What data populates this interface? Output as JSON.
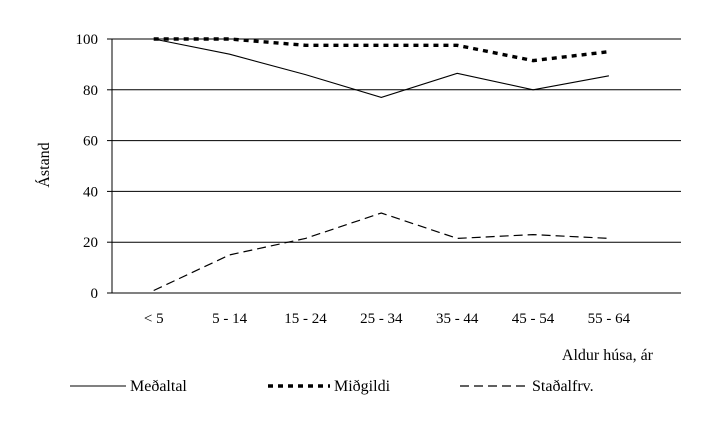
{
  "chart_data": {
    "type": "line",
    "title": "",
    "xlabel": "Aldur húsa, ár",
    "ylabel": "Ástand",
    "ylim": [
      0,
      100
    ],
    "yticks": [
      0,
      20,
      40,
      60,
      80,
      100
    ],
    "grid": "horizontal",
    "legend_position": "bottom",
    "categories": [
      "< 5",
      "5 - 14",
      "15 - 24",
      "25 - 34",
      "35 - 44",
      "45 - 54",
      "55 - 64"
    ],
    "series": [
      {
        "name": "Meðaltal",
        "style": "solid",
        "values": [
          100,
          94,
          86,
          77,
          86.5,
          80,
          85.5
        ]
      },
      {
        "name": "Miðgildi",
        "style": "dotted-bold",
        "values": [
          100,
          100,
          97.5,
          97.5,
          97.5,
          91.5,
          95
        ]
      },
      {
        "name": "Staðalfrv.",
        "style": "dashed",
        "values": [
          1,
          15,
          21.5,
          31.5,
          21.5,
          23,
          21.5
        ]
      }
    ]
  }
}
